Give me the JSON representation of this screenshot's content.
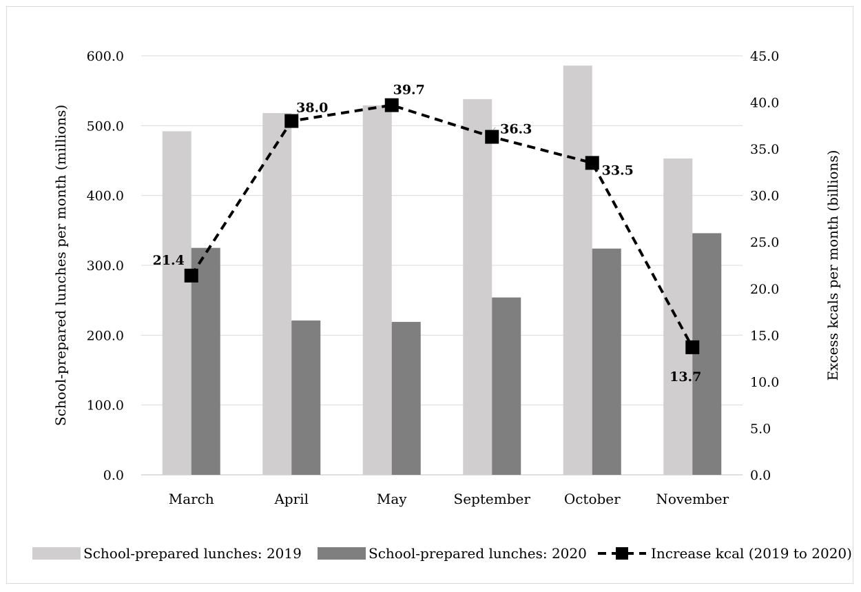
{
  "chart_data": {
    "type": "bar",
    "categories": [
      "March",
      "April",
      "May",
      "September",
      "October",
      "November"
    ],
    "series": [
      {
        "name": "School-prepared lunches: 2019",
        "type": "bar",
        "axis": "left",
        "color": "#d0cece",
        "values": [
          492,
          518,
          529,
          538,
          586,
          453
        ]
      },
      {
        "name": "School-prepared lunches: 2020",
        "type": "bar",
        "axis": "left",
        "color": "#7f7f7f",
        "values": [
          325,
          221,
          219,
          254,
          324,
          346
        ]
      },
      {
        "name": "Increase kcal (2019 to 2020)",
        "type": "line",
        "axis": "right",
        "color": "#000000",
        "style": "dashed",
        "marker": "square",
        "values": [
          21.4,
          38.0,
          39.7,
          36.3,
          33.5,
          13.7
        ],
        "data_labels": [
          "21.4",
          "38.0",
          "39.7",
          "36.3",
          "33.5",
          "13.7"
        ]
      }
    ],
    "ylabel": "School-prepared lunches per month (millions)",
    "y2label": "Excess kcals per month (billions)",
    "ylim": [
      0,
      600
    ],
    "y2lim": [
      0,
      45
    ],
    "yticks": [
      "0.0",
      "100.0",
      "200.0",
      "300.0",
      "400.0",
      "500.0",
      "600.0"
    ],
    "y2ticks": [
      "0.0",
      "5.0",
      "10.0",
      "15.0",
      "20.0",
      "25.0",
      "30.0",
      "35.0",
      "40.0",
      "45.0"
    ],
    "grid": true,
    "legend_position": "bottom"
  }
}
